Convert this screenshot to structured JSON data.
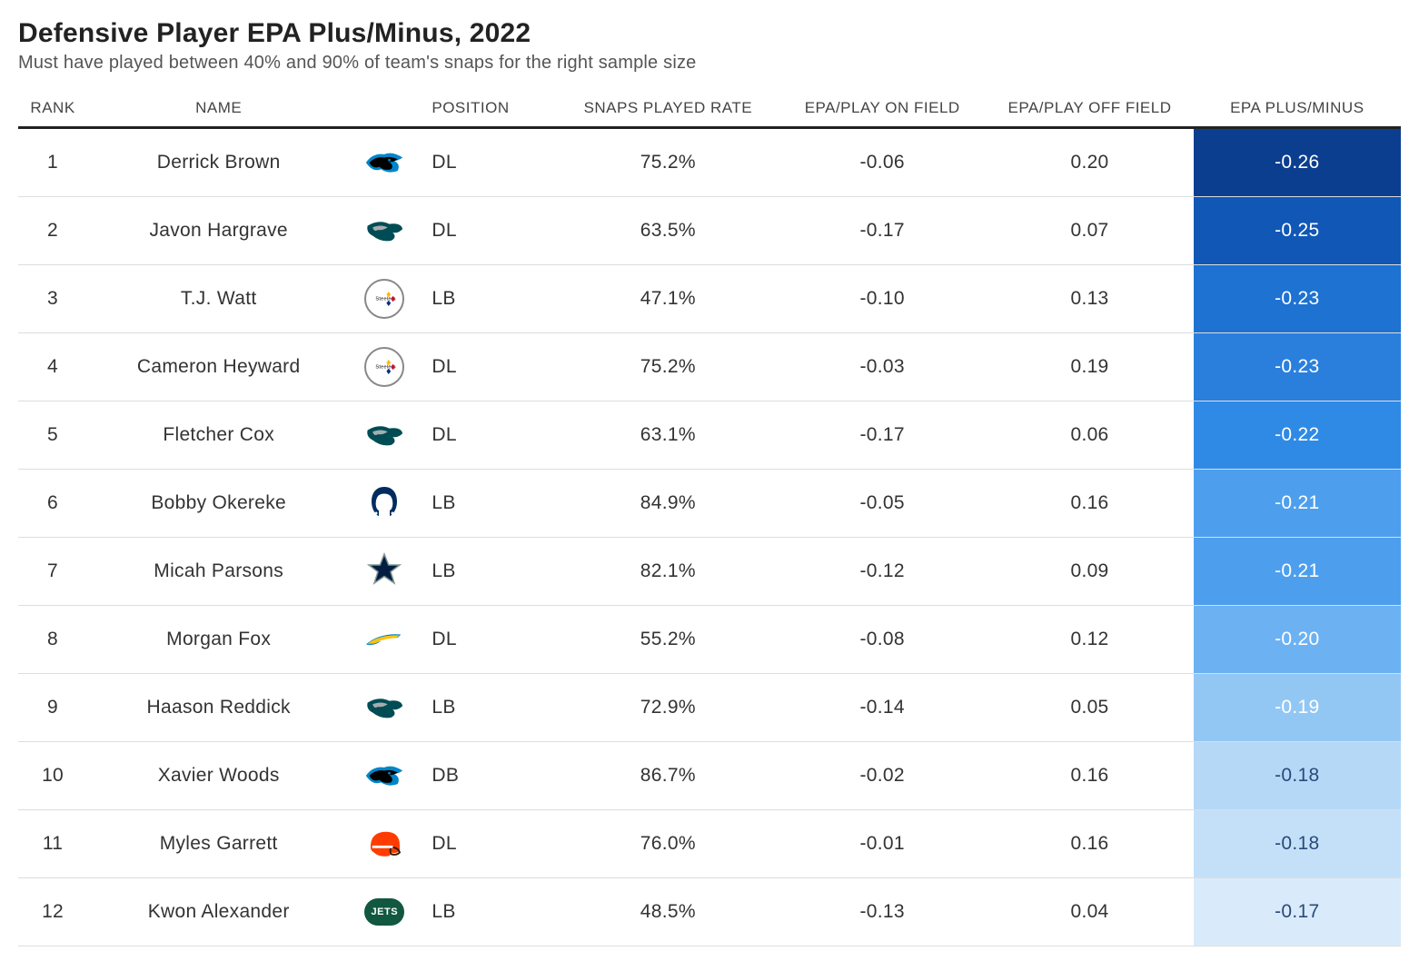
{
  "title": "Defensive Player EPA Plus/Minus, 2022",
  "subtitle": "Must have played between 40% and 90% of team's snaps for the right sample size",
  "columns": [
    "RANK",
    "NAME",
    "",
    "POSITION",
    "SNAPS PLAYED RATE",
    "EPA/PLAY ON FIELD",
    "EPA/PLAY OFF FIELD",
    "EPA PLUS/MINUS"
  ],
  "header_text_color": "#444444",
  "header_border_color": "#222222",
  "row_border_color": "#dddddd",
  "body_text_color": "#333333",
  "pm_text_color_dark": "#ffffff",
  "pm_text_color_light": "#2a4a7a",
  "rows": [
    {
      "rank": "1",
      "name": "Derrick Brown",
      "team": "panthers",
      "pos": "DL",
      "snaps": "75.2%",
      "on": "-0.06",
      "off": "0.20",
      "pm": "-0.26",
      "pm_bg": "#0b3e8f",
      "pm_fg": "#ffffff"
    },
    {
      "rank": "2",
      "name": "Javon Hargrave",
      "team": "eagles",
      "pos": "DL",
      "snaps": "63.5%",
      "on": "-0.17",
      "off": "0.07",
      "pm": "-0.25",
      "pm_bg": "#1057b6",
      "pm_fg": "#ffffff"
    },
    {
      "rank": "3",
      "name": "T.J. Watt",
      "team": "steelers",
      "pos": "LB",
      "snaps": "47.1%",
      "on": "-0.10",
      "off": "0.13",
      "pm": "-0.23",
      "pm_bg": "#1d72d2",
      "pm_fg": "#ffffff"
    },
    {
      "rank": "4",
      "name": "Cameron Heyward",
      "team": "steelers",
      "pos": "DL",
      "snaps": "75.2%",
      "on": "-0.03",
      "off": "0.19",
      "pm": "-0.23",
      "pm_bg": "#2a7fdd",
      "pm_fg": "#ffffff"
    },
    {
      "rank": "5",
      "name": "Fletcher Cox",
      "team": "eagles",
      "pos": "DL",
      "snaps": "63.1%",
      "on": "-0.17",
      "off": "0.06",
      "pm": "-0.22",
      "pm_bg": "#2f8ae6",
      "pm_fg": "#ffffff"
    },
    {
      "rank": "6",
      "name": "Bobby Okereke",
      "team": "colts",
      "pos": "LB",
      "snaps": "84.9%",
      "on": "-0.05",
      "off": "0.16",
      "pm": "-0.21",
      "pm_bg": "#4d9fee",
      "pm_fg": "#ffffff"
    },
    {
      "rank": "7",
      "name": "Micah Parsons",
      "team": "cowboys",
      "pos": "LB",
      "snaps": "82.1%",
      "on": "-0.12",
      "off": "0.09",
      "pm": "-0.21",
      "pm_bg": "#4d9fee",
      "pm_fg": "#ffffff"
    },
    {
      "rank": "8",
      "name": "Morgan Fox",
      "team": "chargers",
      "pos": "DL",
      "snaps": "55.2%",
      "on": "-0.08",
      "off": "0.12",
      "pm": "-0.20",
      "pm_bg": "#6cb2f2",
      "pm_fg": "#ffffff"
    },
    {
      "rank": "9",
      "name": "Haason Reddick",
      "team": "eagles",
      "pos": "LB",
      "snaps": "72.9%",
      "on": "-0.14",
      "off": "0.05",
      "pm": "-0.19",
      "pm_bg": "#93c7f3",
      "pm_fg": "#ffffff"
    },
    {
      "rank": "10",
      "name": "Xavier Woods",
      "team": "panthers",
      "pos": "DB",
      "snaps": "86.7%",
      "on": "-0.02",
      "off": "0.16",
      "pm": "-0.18",
      "pm_bg": "#b4d8f6",
      "pm_fg": "#2a4a7a"
    },
    {
      "rank": "11",
      "name": "Myles Garrett",
      "team": "browns",
      "pos": "DL",
      "snaps": "76.0%",
      "on": "-0.01",
      "off": "0.16",
      "pm": "-0.18",
      "pm_bg": "#c3e0f8",
      "pm_fg": "#2a4a7a"
    },
    {
      "rank": "12",
      "name": "Kwon Alexander",
      "team": "jets",
      "pos": "LB",
      "snaps": "48.5%",
      "on": "-0.13",
      "off": "0.04",
      "pm": "-0.17",
      "pm_bg": "#d9ebfa",
      "pm_fg": "#2a4a7a"
    }
  ],
  "team_logos": {
    "panthers": {
      "type": "svg-cat",
      "color": "#0085CA",
      "accent": "#000000"
    },
    "eagles": {
      "type": "svg-eagle",
      "color": "#004C54",
      "accent": "#A5ACAF"
    },
    "steelers": {
      "type": "svg-steelers",
      "color": "#000000",
      "accent": "#FFB612"
    },
    "colts": {
      "type": "svg-horseshoe",
      "color": "#002C5F"
    },
    "cowboys": {
      "type": "svg-star",
      "color": "#041E42"
    },
    "chargers": {
      "type": "svg-bolt",
      "color": "#FFC20E",
      "accent": "#0080C6"
    },
    "browns": {
      "type": "svg-helmet",
      "color": "#FF3C00",
      "accent": "#311D00"
    },
    "jets": {
      "type": "svg-jets",
      "color": "#125740",
      "accent": "#ffffff"
    }
  }
}
